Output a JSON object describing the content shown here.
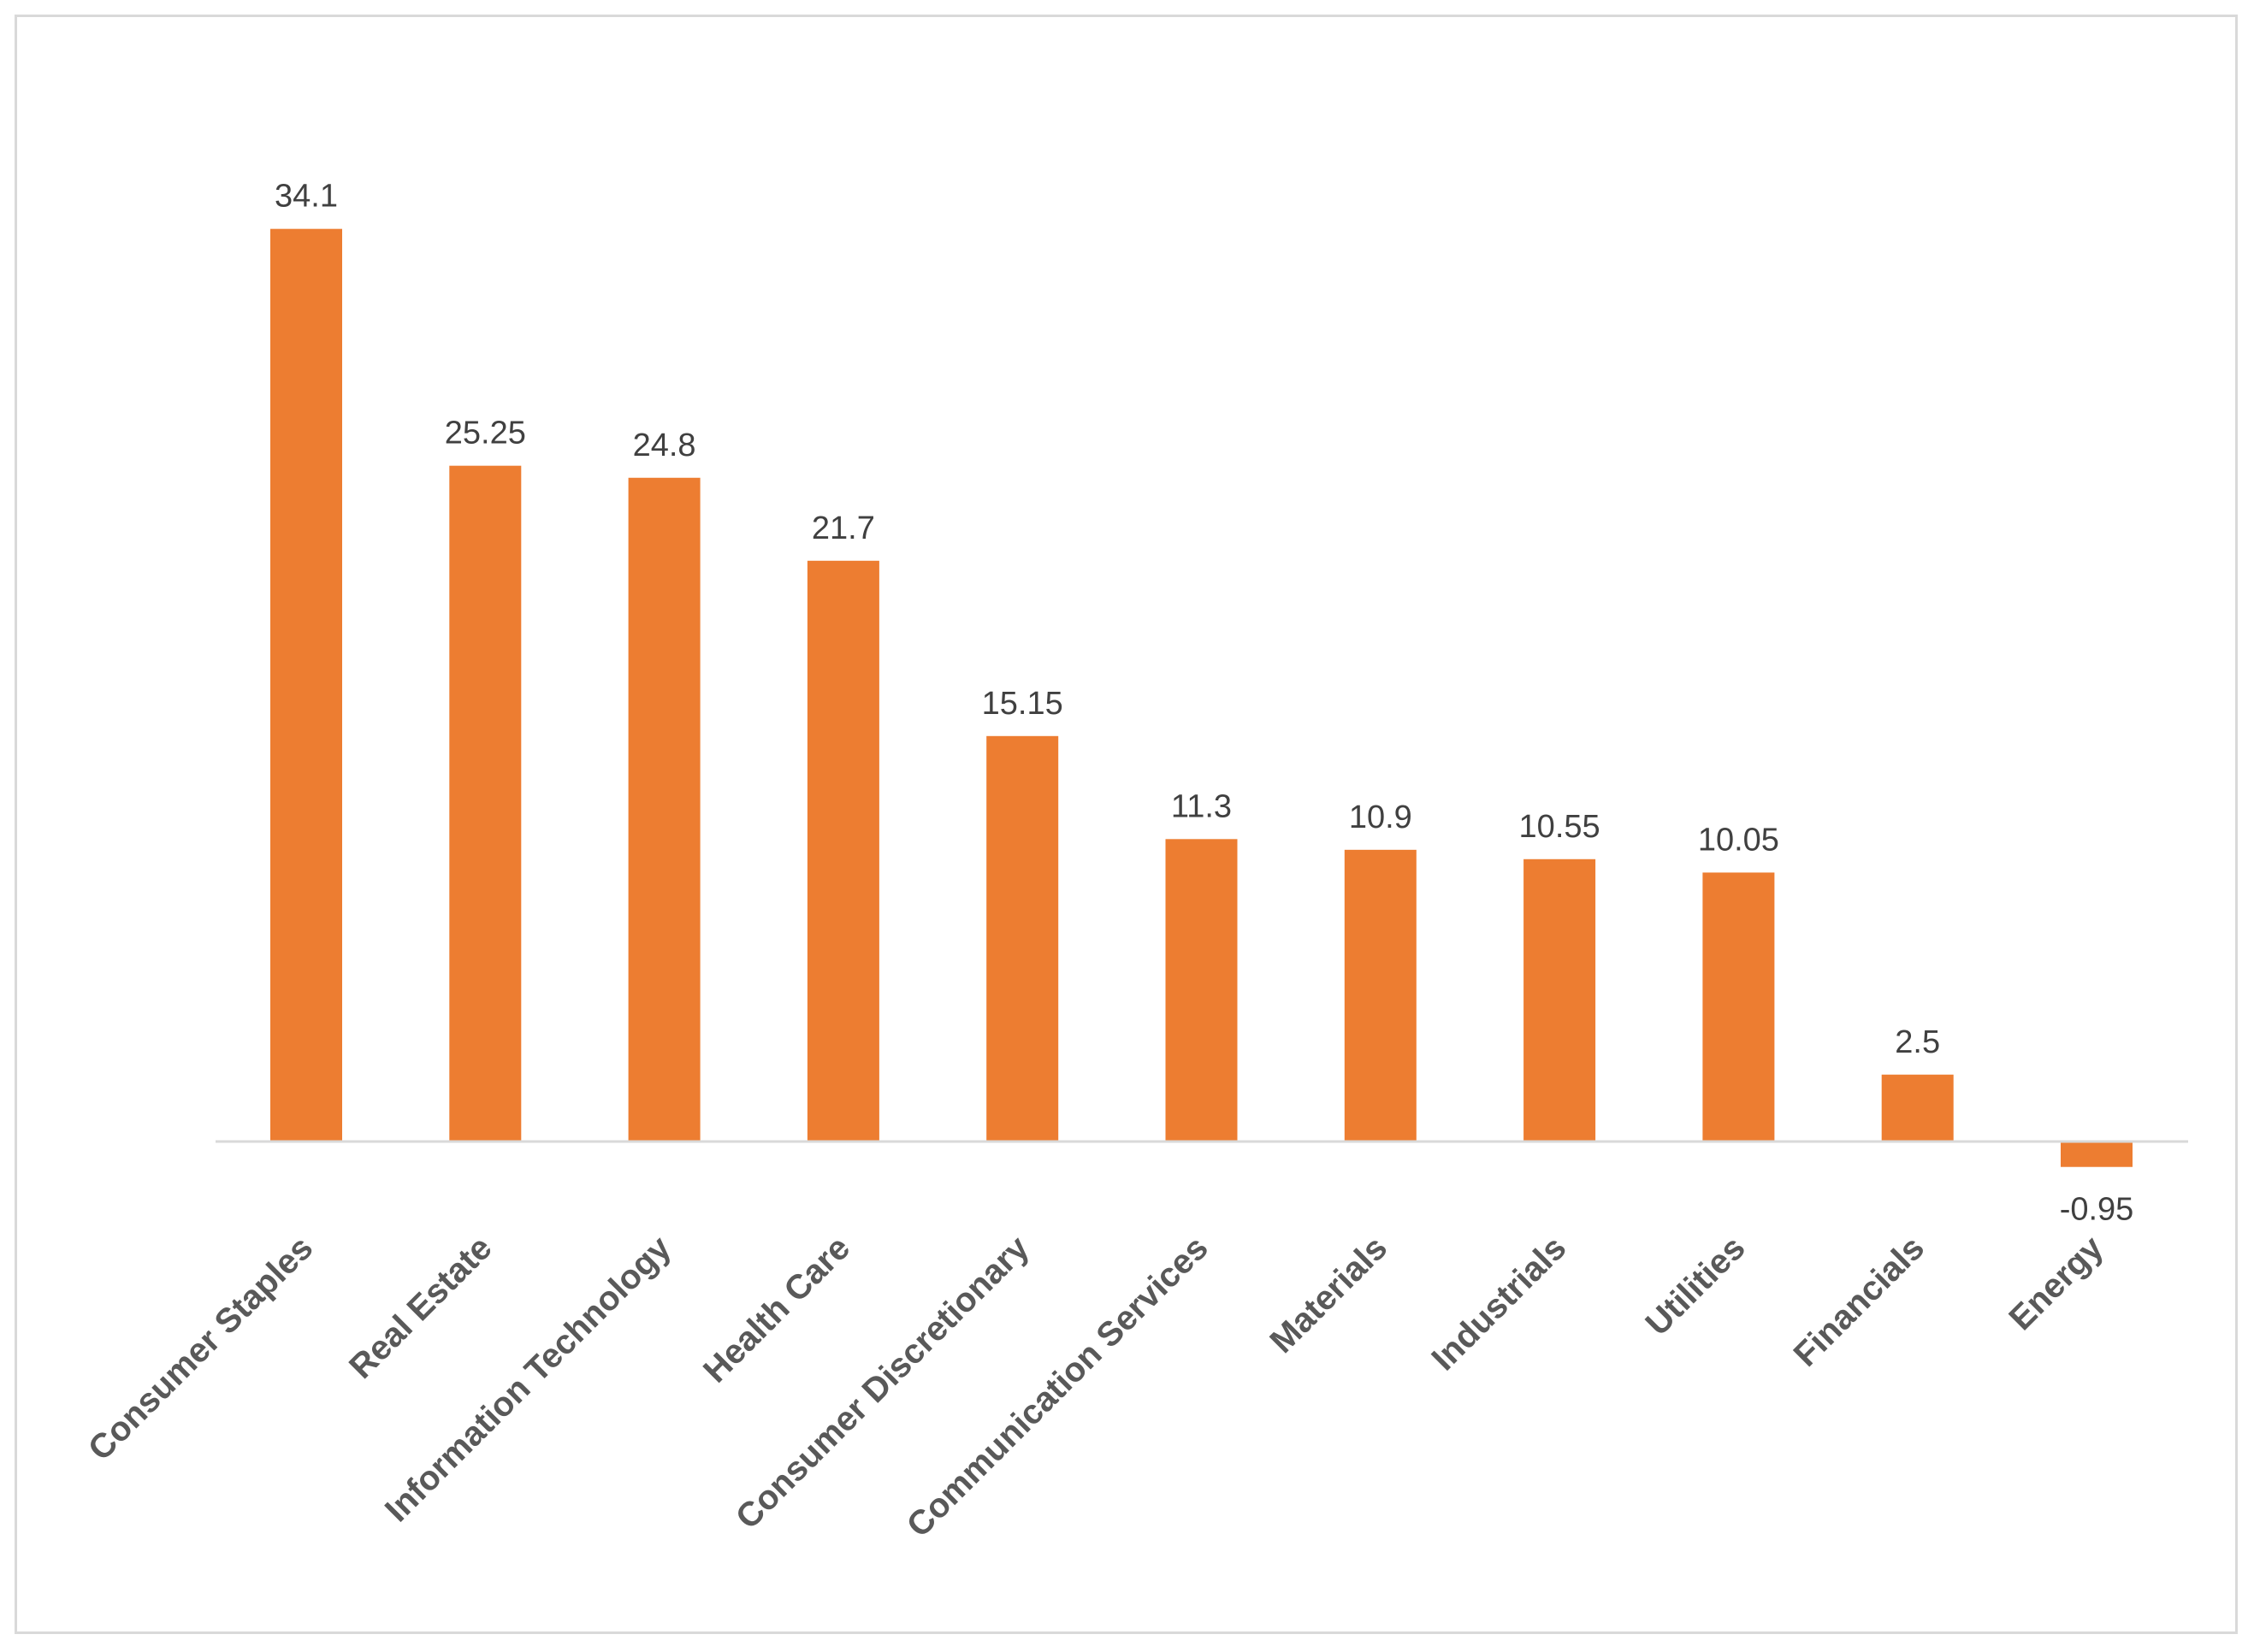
{
  "chart_data": {
    "type": "bar",
    "title": "",
    "xlabel": "",
    "ylabel": "",
    "categories": [
      "Consumer Staples",
      "Real Estate",
      "Information Technology",
      "Health Care",
      "Consumer Discretionary",
      "Communication Services",
      "Materials",
      "Industrials",
      "Utilities",
      "Financials",
      "Energy"
    ],
    "values": [
      34.1,
      25.25,
      24.8,
      21.7,
      15.15,
      11.3,
      10.9,
      10.55,
      10.05,
      2.5,
      -0.95
    ],
    "data_labels": [
      "34.1",
      "25.25",
      "24.8",
      "21.7",
      "15.15",
      "11.3",
      "10.9",
      "10.55",
      "10.05",
      "2.5",
      "-0.95"
    ],
    "ylim": [
      -0.95,
      34.1
    ],
    "grid": false,
    "legend": "none",
    "bar_color": "#ED7D31"
  }
}
